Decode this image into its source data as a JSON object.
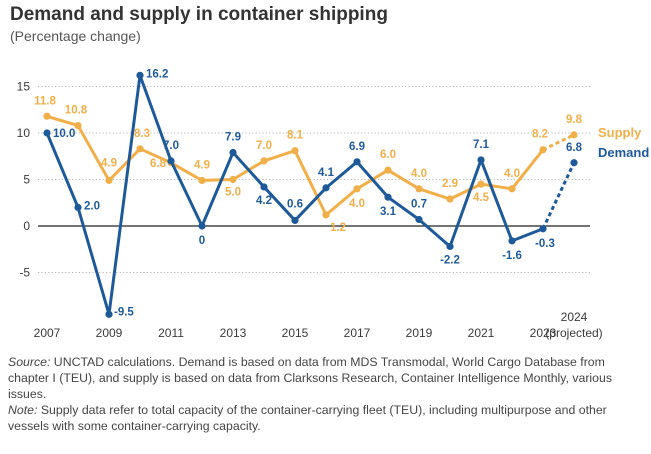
{
  "title": "Demand and supply in container shipping",
  "subtitle": "(Percentage change)",
  "colors": {
    "supply": "#F0AF49",
    "demand": "#1E5A9A",
    "axis": "#222222",
    "grid": "#9a9a9a",
    "text": "#3a3a3a"
  },
  "chart_data": {
    "type": "line",
    "x": [
      2007,
      2008,
      2009,
      2010,
      2011,
      2012,
      2013,
      2014,
      2015,
      2016,
      2017,
      2018,
      2019,
      2020,
      2021,
      2022,
      2023,
      2024
    ],
    "x_tick_labels": [
      "2007",
      "2009",
      "2011",
      "2013",
      "2015",
      "2017",
      "2019",
      "2021",
      "2023"
    ],
    "x_projected_label": [
      "2024",
      "(projected)"
    ],
    "y_ticks": [
      15,
      10,
      5,
      0,
      -5
    ],
    "ylim": [
      -9.5,
      18
    ],
    "grid": "horizontal dotted",
    "projected_from": 2023,
    "series": [
      {
        "name": "Supply",
        "values": [
          11.8,
          10.8,
          4.9,
          8.3,
          6.8,
          4.9,
          5.0,
          7.0,
          8.1,
          1.2,
          4.0,
          6.0,
          4.0,
          2.9,
          4.5,
          4.0,
          8.2,
          9.8
        ],
        "labels": [
          "11.8",
          "10.8",
          "4.9",
          "8.3",
          "6.8",
          "4.9",
          "5.0",
          "7.0",
          "8.1",
          "1.2",
          "4.0",
          "6.0",
          "4.0",
          "2.9",
          "4.5",
          "4.0",
          "8.2",
          "9.8"
        ]
      },
      {
        "name": "Demand",
        "values": [
          10.0,
          2.0,
          -9.5,
          16.2,
          7.0,
          0,
          7.9,
          4.2,
          0.6,
          4.1,
          6.9,
          3.1,
          0.7,
          -2.2,
          7.1,
          -1.6,
          -0.3,
          6.8
        ],
        "labels": [
          "10.0",
          "2.0",
          "-9.5",
          "16.2",
          "7.0",
          "0",
          "7.9",
          "4.2",
          "0.6",
          "4.1",
          "6.9",
          "3.1",
          "0.7",
          "-2.2",
          "7.1",
          "-1.6",
          "-0.3",
          "6.8"
        ]
      }
    ]
  },
  "notes": {
    "source_label": "Source:",
    "source_text": " UNCTAD calculations. Demand is based on data from MDS Transmodal, World Cargo Database from chapter I (TEU), and supply is based on data from Clarksons Research, Container Intelligence Monthly, various issues.",
    "note_label": "Note:",
    "note_text": " Supply data refer to total capacity of the container-carrying fleet (TEU), including multipurpose and other vessels with some container-carrying capacity."
  }
}
